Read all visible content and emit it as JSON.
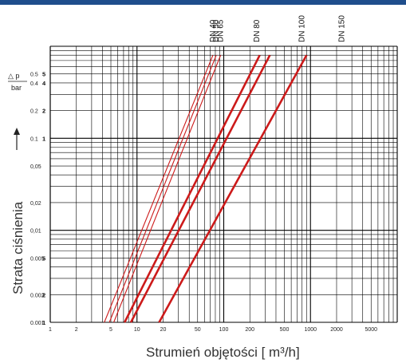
{
  "colors": {
    "top_bar": "#1f4e8c",
    "grid": "#000000",
    "series": "#cc1a1a",
    "text": "#222222"
  },
  "chart_data": {
    "type": "line",
    "x_scale": "log",
    "y_scale": "log",
    "xlim": [
      1,
      10000
    ],
    "ylim": [
      0.001,
      1.0
    ],
    "xlabel": "Strumień objętości [ m³/h]",
    "ylabel": "Strata ciśnienia",
    "ylabel_symbol": "△ p",
    "ylabel_unit": "bar",
    "x_ticks": [
      {
        "value": 1,
        "label": "1"
      },
      {
        "value": 2,
        "label": "2"
      },
      {
        "value": 5,
        "label": "5"
      },
      {
        "value": 10,
        "label": "10"
      },
      {
        "value": 20,
        "label": "20"
      },
      {
        "value": 50,
        "label": "50"
      },
      {
        "value": 100,
        "label": "100"
      },
      {
        "value": 200,
        "label": "200"
      },
      {
        "value": 500,
        "label": "500"
      },
      {
        "value": 1000,
        "label": "1000"
      },
      {
        "value": 2000,
        "label": "2000"
      },
      {
        "value": 5000,
        "label": "5000"
      }
    ],
    "y_ticks": [
      {
        "value": 0.001,
        "label": "0.001",
        "bold": "1"
      },
      {
        "value": 0.002,
        "label": "0.002",
        "bold": "2"
      },
      {
        "value": 0.005,
        "label": "0.005",
        "bold": "5"
      },
      {
        "value": 0.01,
        "label": "0,01",
        "bold": ""
      },
      {
        "value": 0.02,
        "label": "0,02",
        "bold": ""
      },
      {
        "value": 0.05,
        "label": "0,05",
        "bold": ""
      },
      {
        "value": 0.1,
        "label": "0.1",
        "bold": "1"
      },
      {
        "value": 0.2,
        "label": "0.2",
        "bold": "2"
      },
      {
        "value": 0.4,
        "label": "0.4",
        "bold": "4"
      },
      {
        "value": 0.5,
        "label": "0.5",
        "bold": "5"
      }
    ],
    "grid": true,
    "series": [
      {
        "name": "DN 40",
        "points": [
          [
            4.2,
            0.001
          ],
          [
            75,
            0.8
          ]
        ],
        "thick": false,
        "label_x": 75
      },
      {
        "name": "DN 50",
        "points": [
          [
            4.8,
            0.001
          ],
          [
            82,
            0.8
          ]
        ],
        "thick": false,
        "label_x": 82
      },
      {
        "name": "DN 65",
        "points": [
          [
            5.4,
            0.001
          ],
          [
            92,
            0.8
          ]
        ],
        "thick": false,
        "label_x": 92
      },
      {
        "name": "DN 80",
        "points": [
          [
            7.2,
            0.001
          ],
          [
            260,
            0.8
          ]
        ],
        "thick": true,
        "label_x": 240
      },
      {
        "name": "",
        "points": [
          [
            8.5,
            0.001
          ],
          [
            340,
            0.8
          ]
        ],
        "thick": true,
        "label_x": null
      },
      {
        "name": "DN 100",
        "points": [
          [
            18,
            0.001
          ],
          [
            900,
            0.8
          ]
        ],
        "thick": true,
        "label_x": 800
      },
      {
        "name": "DN 150",
        "points": [],
        "thick": true,
        "label_x": 2300
      }
    ]
  }
}
